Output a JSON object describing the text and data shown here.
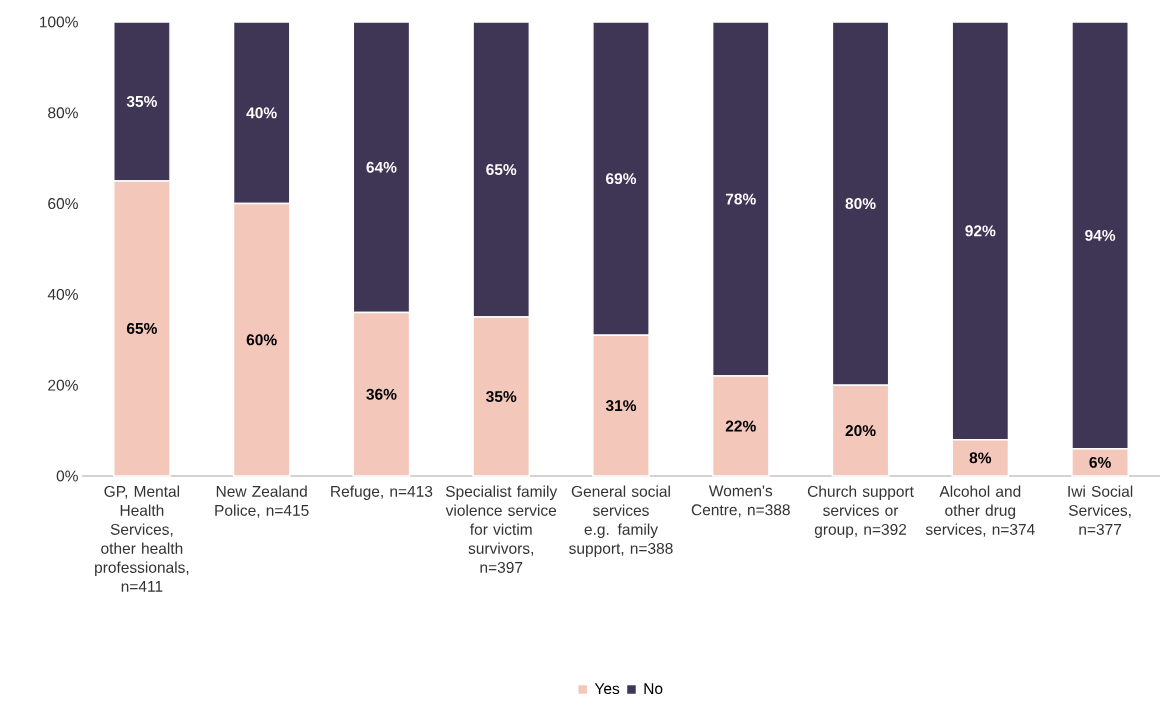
{
  "chart_data": {
    "type": "bar",
    "stacked": true,
    "categories": [
      "GP, Mental Health Services, other health professionals, n=411",
      "New Zealand Police, n=415",
      "Refuge, n=413",
      "Specialist family violence service for victim survivors, n=397",
      "General social services e.g. family support, n=388",
      "Women's Centre, n=388",
      "Church support services or group, n=392",
      "Alcohol and other drug services, n=374",
      "Iwi Social Services, n=377"
    ],
    "series": [
      {
        "name": "Yes",
        "color": "#f4c7bb",
        "values": [
          65,
          60,
          36,
          35,
          31,
          22,
          20,
          8,
          6
        ],
        "value_labels": [
          "65%",
          "60%",
          "36%",
          "35%",
          "31%",
          "22%",
          "20%",
          "8%",
          "6%"
        ]
      },
      {
        "name": "No",
        "color": "#3f3656",
        "values": [
          35,
          40,
          64,
          65,
          69,
          78,
          80,
          92,
          94
        ],
        "value_labels": [
          "35%",
          "40%",
          "64%",
          "65%",
          "69%",
          "78%",
          "80%",
          "92%",
          "94%"
        ]
      }
    ],
    "ylim": [
      0,
      100
    ],
    "yticks": [
      {
        "value": 0,
        "label": "0%"
      },
      {
        "value": 20,
        "label": "20%"
      },
      {
        "value": 40,
        "label": "40%"
      },
      {
        "value": 60,
        "label": "60%"
      },
      {
        "value": 80,
        "label": "80%"
      },
      {
        "value": 100,
        "label": "100%"
      }
    ],
    "legend": "bottom"
  }
}
